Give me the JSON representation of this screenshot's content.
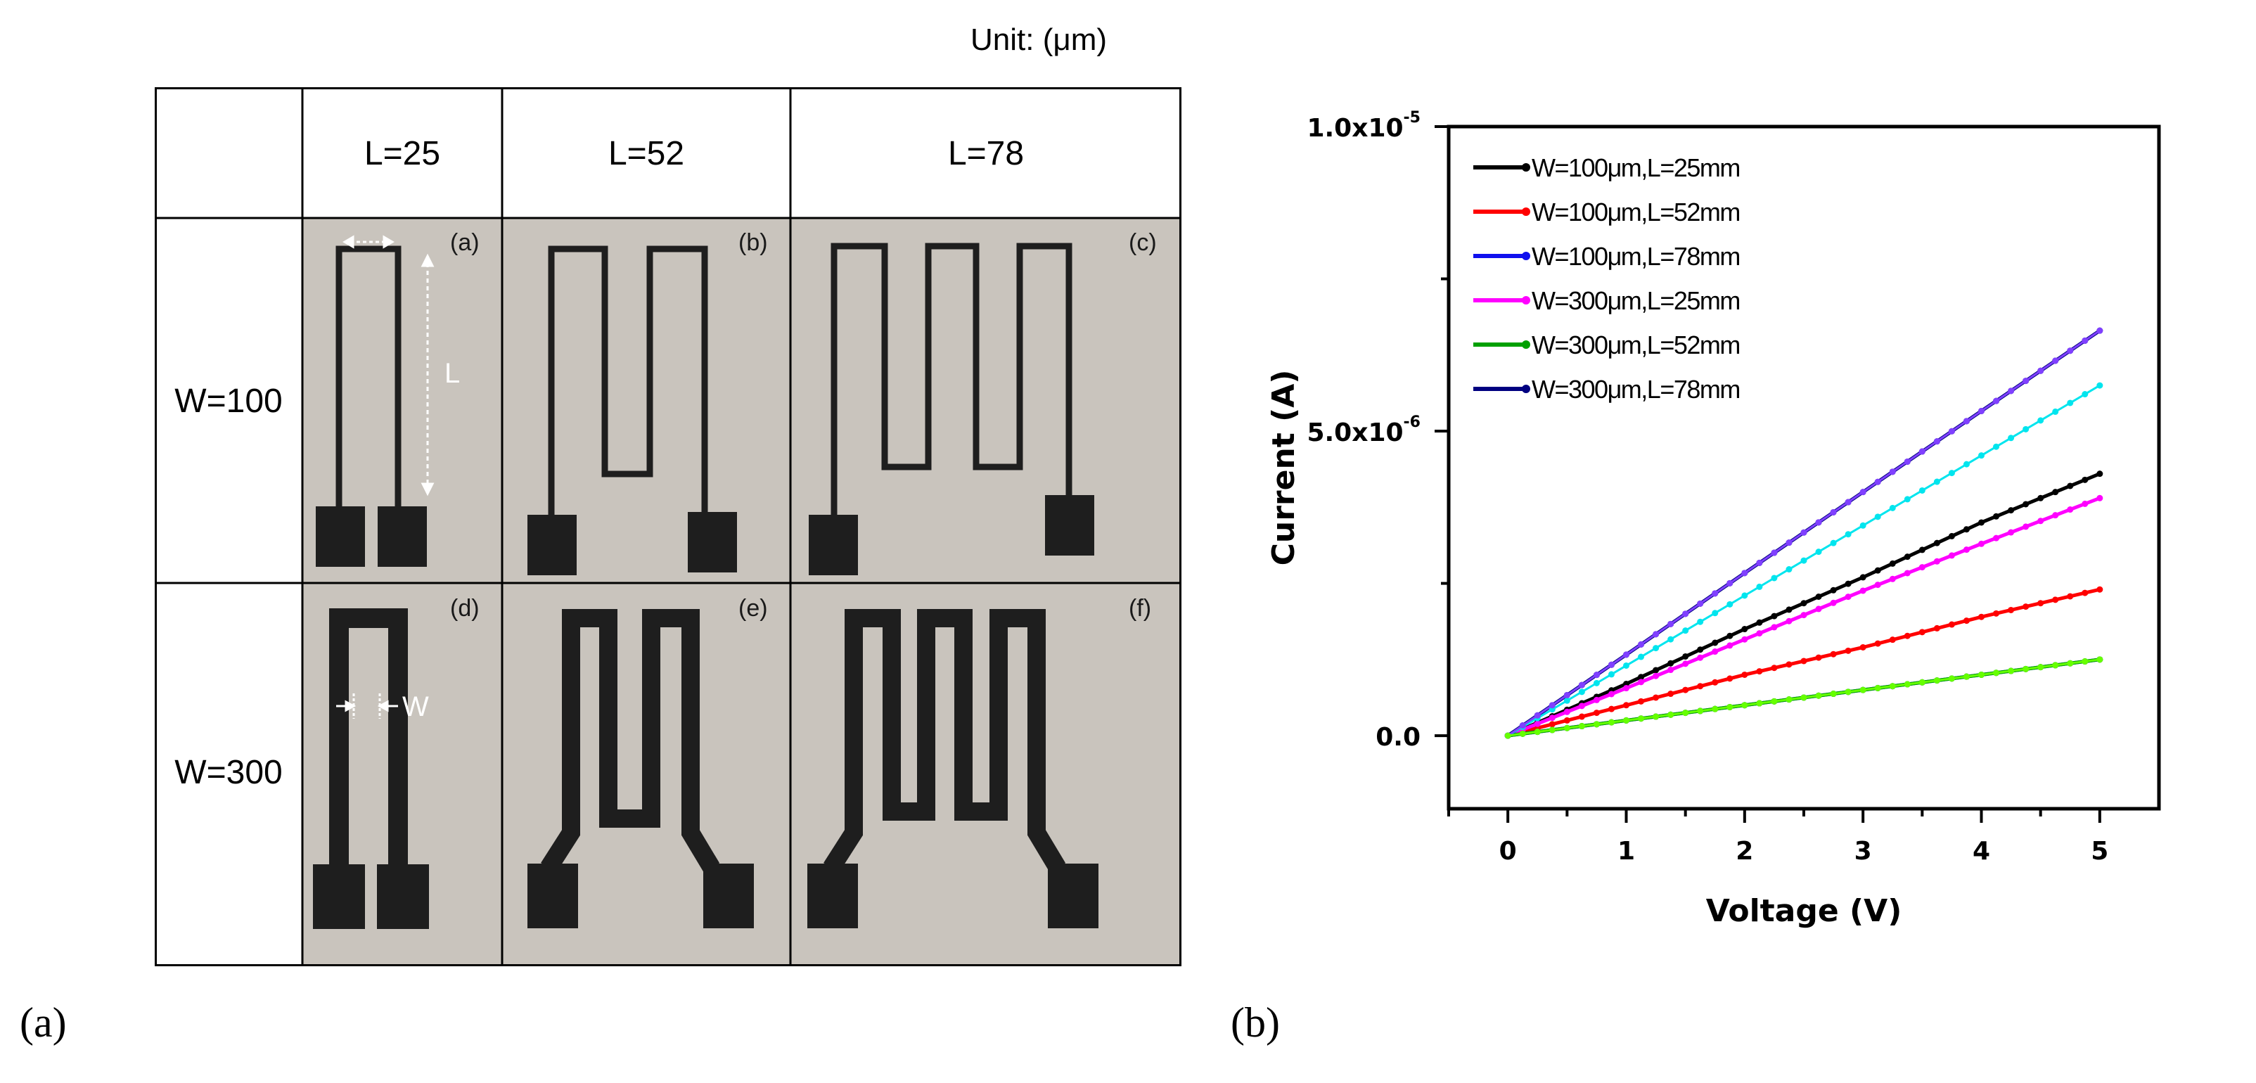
{
  "figure": {
    "unit_label": "Unit: (μm)",
    "panel_a_caption": "(a)",
    "panel_b_caption": "(b)"
  },
  "table": {
    "col_headers": [
      "L=25",
      "L=52",
      "L=78"
    ],
    "row_headers": [
      "W=100",
      "W=300"
    ],
    "cell_labels": [
      "(a)",
      "(b)",
      "(c)",
      "(d)",
      "(e)",
      "(f)"
    ],
    "annotation_L": "L",
    "annotation_W": "W",
    "colors": {
      "photo_bg": "#c9c4bd",
      "trace": "#1e1e1e",
      "annotation": "#ffffff"
    }
  },
  "chart_data": {
    "type": "line",
    "xlabel": "Voltage (V)",
    "ylabel": "Current (A)",
    "xlim": [
      -0.5,
      5.5
    ],
    "ylim": [
      -1.2e-06,
      1e-05
    ],
    "xticks": [
      0,
      1,
      2,
      3,
      4,
      5
    ],
    "xtick_labels": [
      "0",
      "1",
      "2",
      "3",
      "4",
      "5"
    ],
    "yticks": [
      0,
      5e-06,
      1e-05
    ],
    "ytick_labels": [
      {
        "mant": "0.0",
        "exp": ""
      },
      {
        "mant": "5.0x10",
        "exp": "-6"
      },
      {
        "mant": "1.0x10",
        "exp": "-5"
      }
    ],
    "legend_position": "top-left",
    "grid": false,
    "x": [
      0,
      1,
      2,
      3,
      4,
      5
    ],
    "series": [
      {
        "name": "W=100μm,L=25mm",
        "color": "#000000",
        "values": [
          0,
          8.5e-07,
          1.75e-06,
          2.6e-06,
          3.5e-06,
          4.3e-06
        ]
      },
      {
        "name": "W=100μm,L=52mm",
        "color": "#ff0000",
        "values": [
          0,
          5e-07,
          1e-06,
          1.45e-06,
          1.95e-06,
          2.4e-06
        ]
      },
      {
        "name": "W=100μm,L=78mm",
        "color": "#1010ee",
        "values": [
          0,
          2.5e-07,
          5e-07,
          7.5e-07,
          1e-06,
          1.25e-06
        ]
      },
      {
        "name": "W=300μm,L=25mm",
        "color": "#ff00ff",
        "values": [
          0,
          7.8e-07,
          1.58e-06,
          2.38e-06,
          3.15e-06,
          3.9e-06
        ]
      },
      {
        "name": "W=300μm,L=52mm",
        "color": "#00a000",
        "values": [
          0,
          2.5e-07,
          5e-07,
          7.5e-07,
          1e-06,
          1.25e-06
        ]
      },
      {
        "name": "W=300μm,L=78mm",
        "color": "#000080",
        "values": [
          0,
          1.33e-06,
          2.67e-06,
          4e-06,
          5.33e-06,
          6.65e-06
        ]
      }
    ],
    "overlay_series": [
      {
        "color": "#00e5ee",
        "values": [
          0,
          1.15e-06,
          2.3e-06,
          3.45e-06,
          4.6e-06,
          5.75e-06
        ]
      },
      {
        "color": "#8040ff",
        "values": [
          0,
          1.33e-06,
          2.67e-06,
          4e-06,
          5.33e-06,
          6.65e-06
        ]
      },
      {
        "color": "#66ff00",
        "values": [
          0,
          2.5e-07,
          5e-07,
          7.5e-07,
          1e-06,
          1.25e-06
        ]
      }
    ]
  }
}
